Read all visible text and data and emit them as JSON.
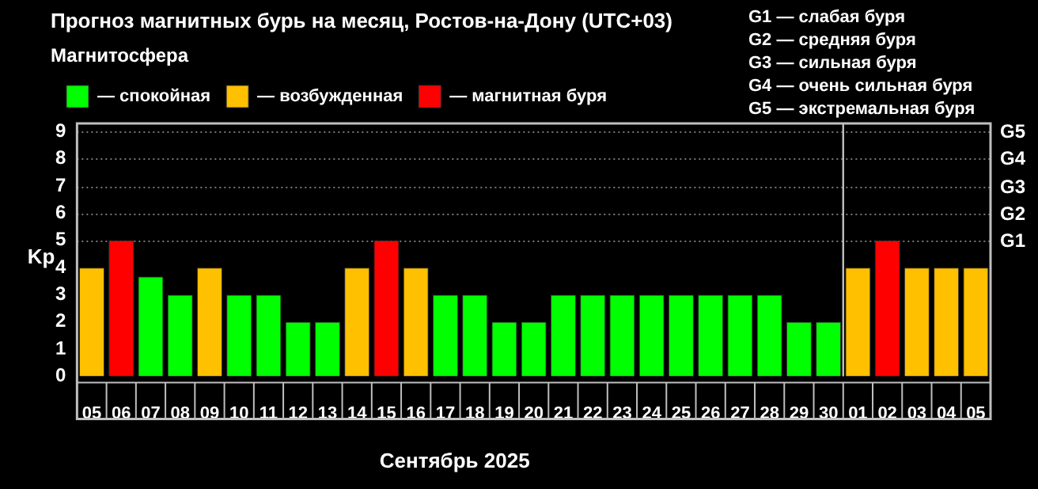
{
  "chart_data": {
    "type": "bar",
    "title": "Прогноз магнитных бурь на месяц, Ростов-на-Дону (UTC+03)",
    "legend_title": "Магнитосфера",
    "xlabel": "Сентябрь 2025",
    "ylabel": "Kp",
    "categories": [
      "05",
      "06",
      "07",
      "08",
      "09",
      "10",
      "11",
      "12",
      "13",
      "14",
      "15",
      "16",
      "17",
      "18",
      "19",
      "20",
      "21",
      "22",
      "23",
      "24",
      "25",
      "26",
      "27",
      "28",
      "29",
      "30",
      "01",
      "02",
      "03",
      "04",
      "05"
    ],
    "stacked": true,
    "series": [
      {
        "name": "— спокойная",
        "color": "#00ff00",
        "values": [
          null,
          null,
          3.67,
          3,
          null,
          3,
          3,
          2,
          2,
          null,
          null,
          null,
          3,
          3,
          2,
          2,
          3,
          3,
          3,
          3,
          3,
          3,
          3,
          3,
          2,
          2,
          null,
          null,
          null,
          null,
          null
        ]
      },
      {
        "name": "— возбужденная",
        "color": "#ffc000",
        "values": [
          4,
          null,
          null,
          null,
          4,
          null,
          null,
          null,
          null,
          4,
          null,
          4,
          null,
          null,
          null,
          null,
          null,
          null,
          null,
          null,
          null,
          null,
          null,
          null,
          null,
          null,
          4,
          null,
          4,
          4,
          4
        ]
      },
      {
        "name": "— магнитная буря",
        "color": "#ff0000",
        "values": [
          null,
          5,
          null,
          null,
          null,
          null,
          null,
          null,
          null,
          null,
          5,
          null,
          null,
          null,
          null,
          null,
          null,
          null,
          null,
          null,
          null,
          null,
          null,
          null,
          null,
          null,
          null,
          5,
          null,
          null,
          null
        ]
      }
    ],
    "ylim": [
      0,
      9.3
    ],
    "yticks": [
      0,
      1,
      2,
      3,
      4,
      5,
      6,
      7,
      8,
      9
    ],
    "legend": "top left",
    "ref_lines": [
      {
        "axis": "x",
        "value": "01",
        "color": "#bfbfbf"
      },
      {
        "axis": "y",
        "value": 5,
        "label": "G1",
        "color": "#777777",
        "line_style": "dotted"
      },
      {
        "axis": "y",
        "value": 6,
        "label": "G2",
        "color": "#777777",
        "line_style": "dotted"
      },
      {
        "axis": "y",
        "value": 7,
        "label": "G3",
        "color": "#777777",
        "line_style": "dotted"
      },
      {
        "axis": "y",
        "value": 8,
        "label": "G4",
        "color": "#777777",
        "line_style": "dotted"
      },
      {
        "axis": "y",
        "value": 9,
        "label": "G5",
        "color": "#777777",
        "line_style": "dotted"
      }
    ],
    "annotations": [
      "G1 — слабая буря",
      "G2 — средняя буря",
      "G3 — сильная буря",
      "G4 — очень сильная буря",
      "G5 — экстремальная буря"
    ]
  }
}
